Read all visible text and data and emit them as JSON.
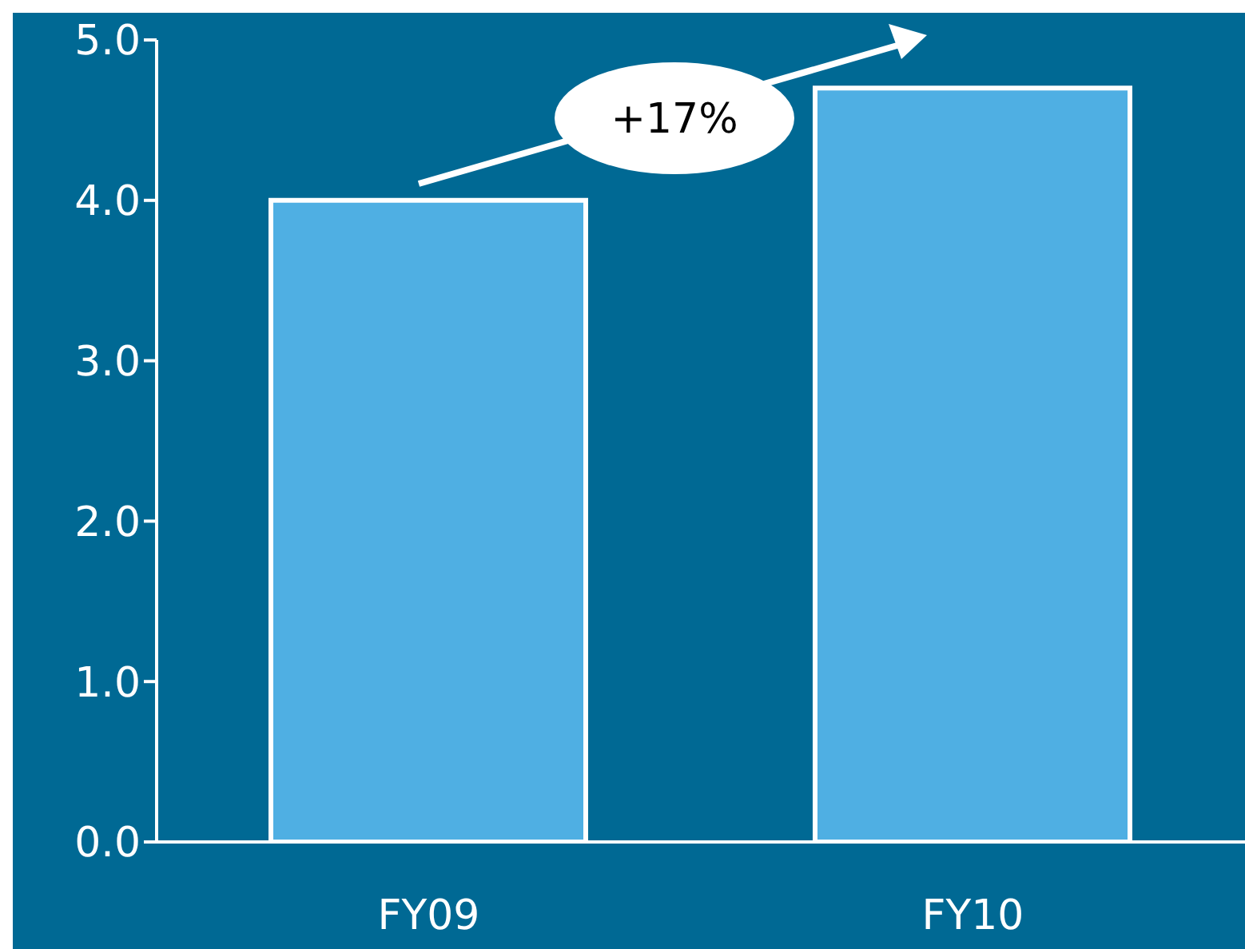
{
  "chart_data": {
    "type": "bar",
    "categories": [
      "FY09",
      "FY10"
    ],
    "values": [
      4.0,
      4.7
    ],
    "color": "#4fafe3",
    "ylim": [
      0,
      5
    ],
    "yticks": [
      {
        "value": 0,
        "label": "0.0"
      },
      {
        "value": 1,
        "label": "1.0"
      },
      {
        "value": 2,
        "label": "2.0"
      },
      {
        "value": 3,
        "label": "3.0"
      },
      {
        "value": 4,
        "label": "4.0"
      },
      {
        "value": 5,
        "label": "5.0"
      }
    ],
    "grid": false,
    "legend": false,
    "annotations": [
      "+17%"
    ]
  }
}
